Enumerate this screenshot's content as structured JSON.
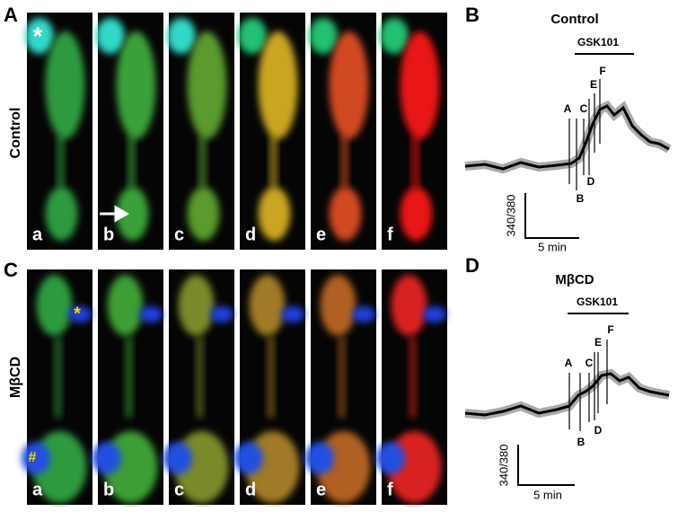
{
  "panel_a": {
    "letter": "A",
    "row_label": "Control",
    "marker": "*",
    "frames": [
      "a",
      "b",
      "c",
      "d",
      "e",
      "f"
    ]
  },
  "panel_b": {
    "letter": "B",
    "title": "Control",
    "stimulus": "GSK101",
    "time_markers": [
      "A",
      "B",
      "C",
      "D",
      "E",
      "F"
    ],
    "y_scale_label": "340/380",
    "x_scale_label": "5 min"
  },
  "panel_c": {
    "letter": "C",
    "row_label": "MβCD",
    "markers": [
      "*",
      "#"
    ],
    "frames": [
      "a",
      "b",
      "c",
      "d",
      "e",
      "f"
    ]
  },
  "panel_d": {
    "letter": "D",
    "title": "MβCD",
    "stimulus": "GSK101",
    "time_markers": [
      "A",
      "B",
      "C",
      "D",
      "E",
      "F"
    ],
    "y_scale_label": "340/380",
    "x_scale_label": "5 min"
  }
}
